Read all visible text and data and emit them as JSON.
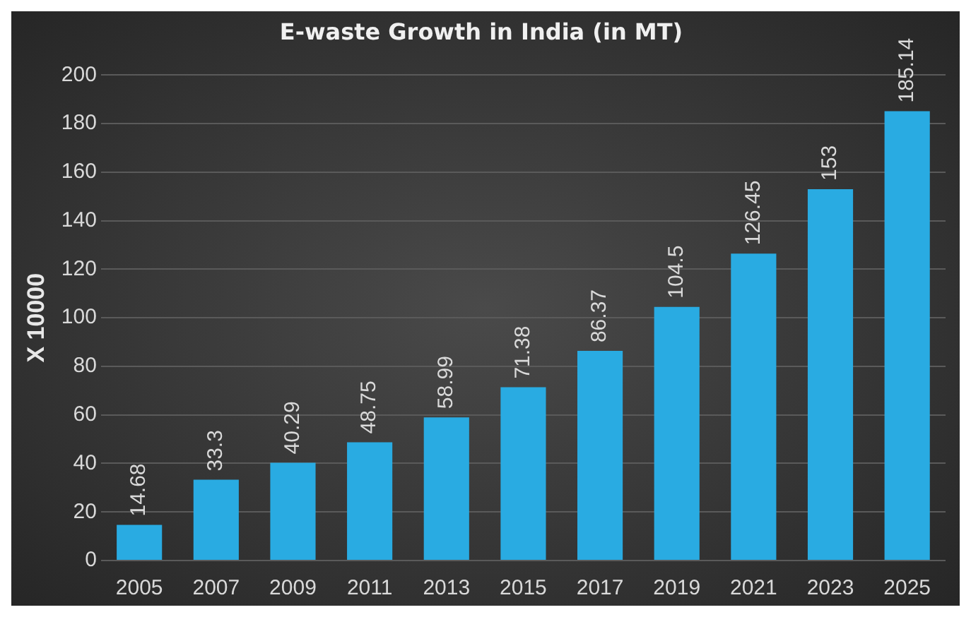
{
  "chart_data": {
    "type": "bar",
    "title": "E-waste Growth in India (in MT)",
    "ylabel": "X 10000",
    "categories": [
      "2005",
      "2007",
      "2009",
      "2011",
      "2013",
      "2015",
      "2017",
      "2019",
      "2021",
      "2023",
      "2025"
    ],
    "values": [
      14.68,
      33.3,
      40.29,
      48.75,
      58.99,
      71.38,
      86.37,
      104.5,
      126.45,
      153,
      185.14
    ],
    "color": "#29abe2",
    "ylim": [
      0,
      200
    ],
    "yticks": [
      0,
      20,
      40,
      60,
      80,
      100,
      120,
      140,
      160,
      180,
      200
    ],
    "grid": "y",
    "legend": false,
    "data_labels": true
  }
}
